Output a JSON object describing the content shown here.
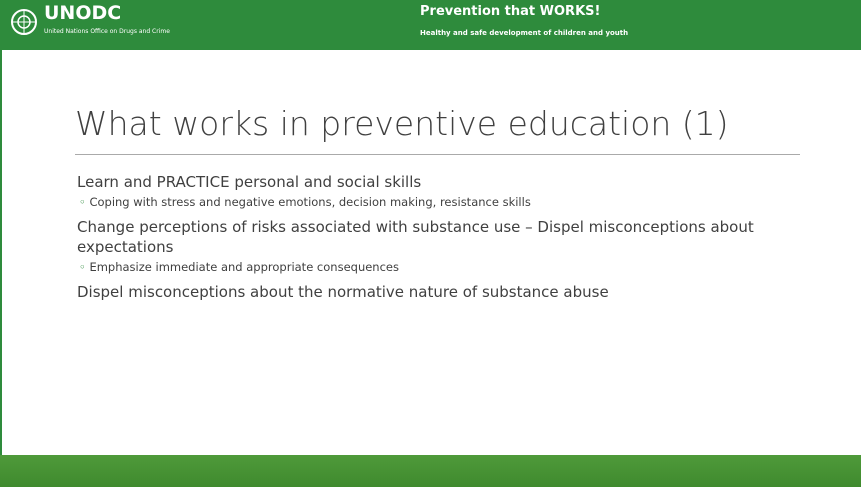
{
  "header": {
    "logo": "UNODC",
    "logo_subtitle": "United Nations Office on Drugs and Crime",
    "title": "Prevention that WORKS!",
    "subtitle": "Healthy and safe development of children and youth"
  },
  "slide": {
    "title": "What works in preventive education (1)",
    "items": [
      {
        "text": "Learn and PRACTICE personal and social skills",
        "sub": "Coping with stress and negative emotions, decision making, resistance skills"
      },
      {
        "text": "Change perceptions of risks associated with substance use – Dispel misconceptions about expectations",
        "sub": "Emphasize immediate and appropriate consequences"
      },
      {
        "text": "Dispel misconceptions about the normative nature of substance abuse"
      }
    ]
  }
}
